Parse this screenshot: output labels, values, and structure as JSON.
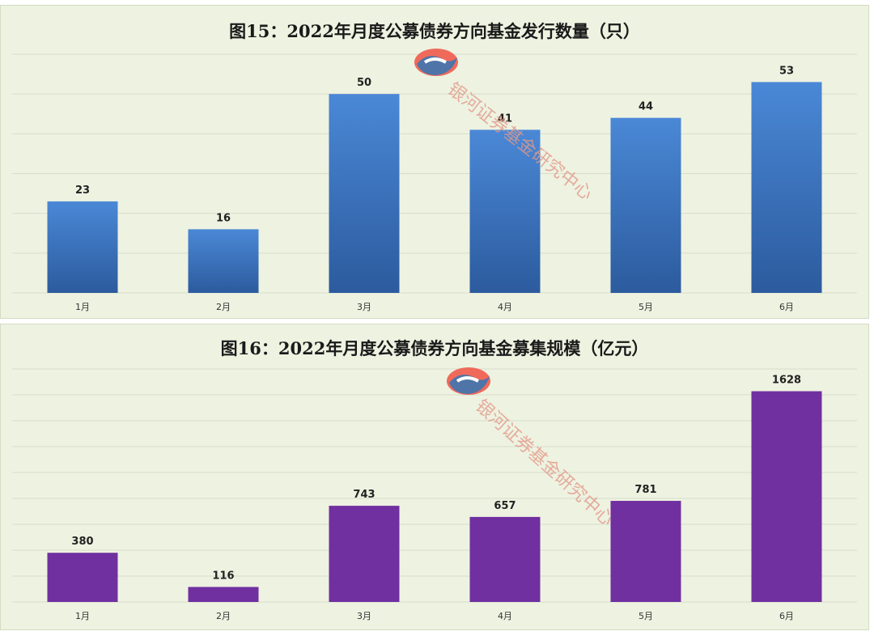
{
  "watermark": {
    "text": "银河证券基金研究中心"
  },
  "chart_data": [
    {
      "type": "bar",
      "title": "图15：2022年月度公募债券方向基金发行数量（只）",
      "categories": [
        "1月",
        "2月",
        "3月",
        "4月",
        "5月",
        "6月"
      ],
      "values": [
        23,
        16,
        50,
        41,
        44,
        53
      ],
      "ylim": [
        0,
        60
      ],
      "grid": true,
      "colors": {
        "bar_top": "#4a88d6",
        "bar_bottom": "#2c5b9e"
      }
    },
    {
      "type": "bar",
      "title": "图16：2022年月度公募债券方向基金募集规模（亿元）",
      "categories": [
        "1月",
        "2月",
        "3月",
        "4月",
        "5月",
        "6月"
      ],
      "values": [
        380,
        116,
        743,
        657,
        781,
        1628
      ],
      "ylim": [
        0,
        1800
      ],
      "grid": true,
      "colors": {
        "bar_top": "#7030a0",
        "bar_bottom": "#7030a0"
      }
    }
  ]
}
